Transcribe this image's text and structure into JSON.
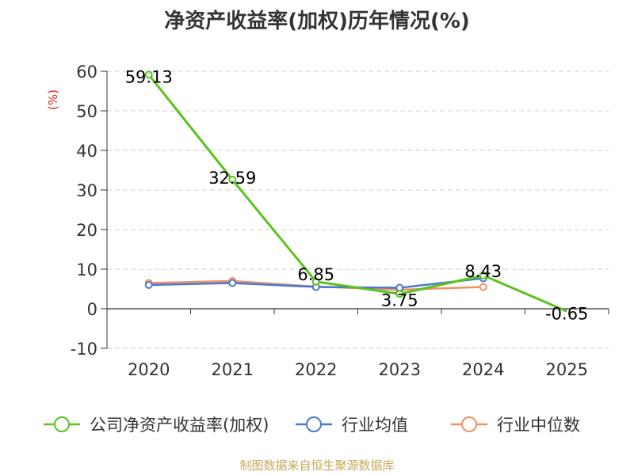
{
  "chart_data": {
    "type": "line",
    "title": "净资产收益率(加权)历年情况(%)",
    "ylabel": "(%)",
    "xlabel": "",
    "categories": [
      "2020",
      "2021",
      "2022",
      "2023",
      "2024",
      "2025"
    ],
    "ylim": [
      -10,
      60
    ],
    "yticks": [
      -10,
      0,
      10,
      20,
      30,
      40,
      50,
      60
    ],
    "grid": true,
    "legend_position": "bottom",
    "series": [
      {
        "name": "公司净资产收益率(加权)",
        "color": "#5ac31e",
        "values": [
          59.13,
          32.59,
          6.85,
          3.75,
          8.43,
          -0.65
        ],
        "labels": [
          "59.13",
          "32.59",
          "6.85",
          "3.75",
          "8.43",
          "-0.65"
        ],
        "markers": [
          true,
          true,
          true,
          true,
          true,
          false
        ]
      },
      {
        "name": "行业均值",
        "color": "#4a78d6",
        "values": [
          6.0,
          6.5,
          5.5,
          5.3,
          7.7,
          null
        ]
      },
      {
        "name": "行业中位数",
        "color": "#f29062",
        "values": [
          6.5,
          7.0,
          5.6,
          4.8,
          5.5,
          null
        ]
      }
    ],
    "source": "制图数据来自恒生聚源数据库"
  }
}
